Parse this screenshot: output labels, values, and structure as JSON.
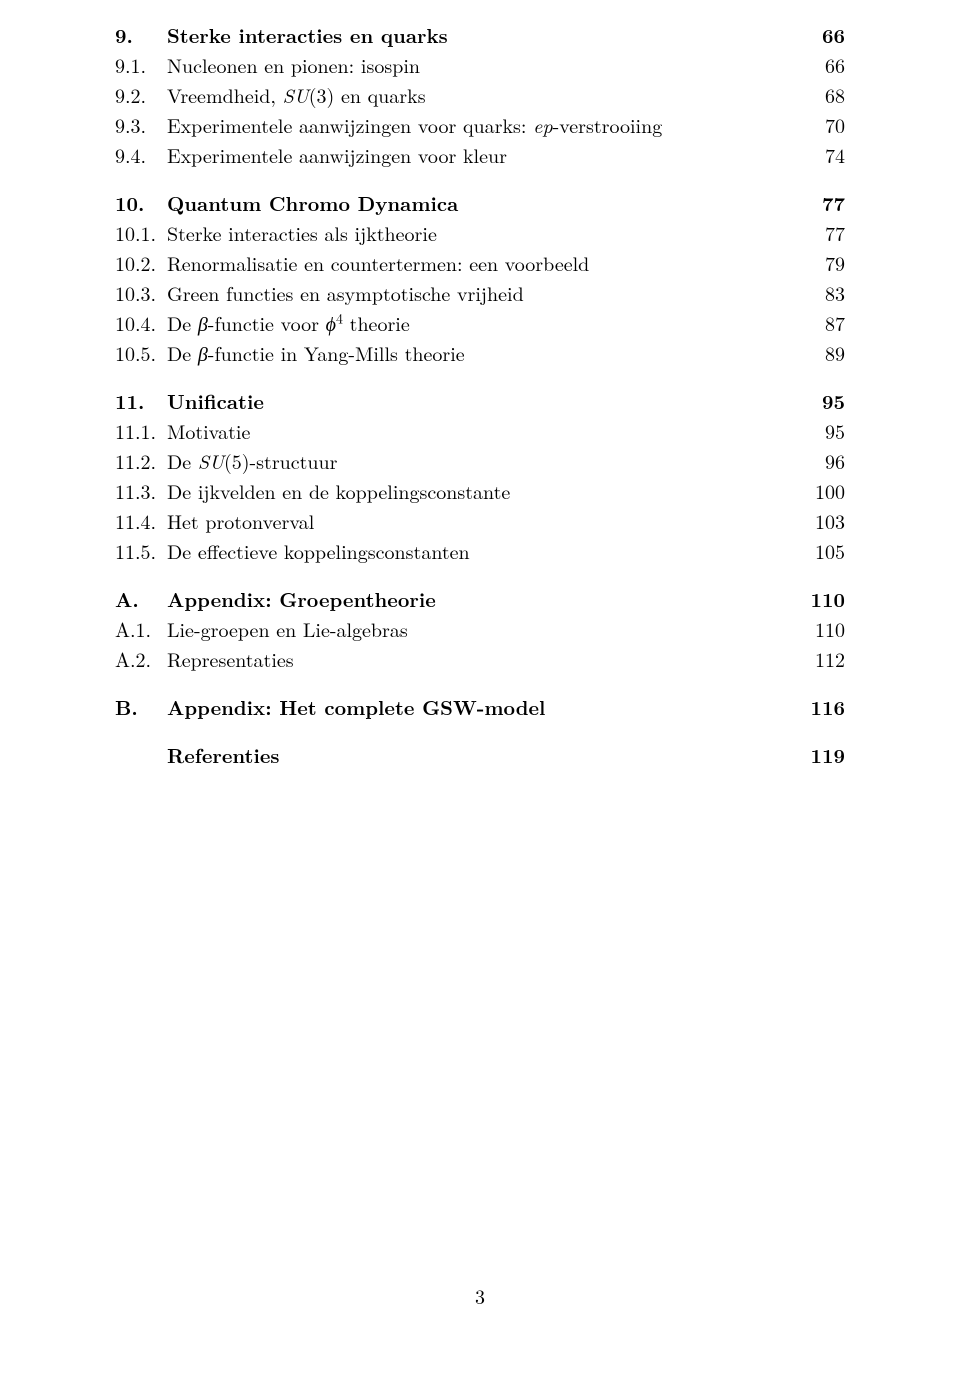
{
  "groups": [
    {
      "heading": {
        "num": "9.",
        "title": "Sterke interacties en quarks",
        "page": "66"
      },
      "items": [
        {
          "num": "9.1.",
          "title": "Nucleonen en pionen: isospin",
          "page": "66"
        },
        {
          "num": "9.2.",
          "title_pre": "Vreemdheid, ",
          "title_mid_i": "SU",
          "title_post": "(3) en quarks",
          "page": "68"
        },
        {
          "num": "9.3.",
          "title_pre": "Experimentele aanwijzingen voor quarks: ",
          "title_mid_i": "ep",
          "title_post": "-verstrooiing",
          "page": "70"
        },
        {
          "num": "9.4.",
          "title": "Experimentele aanwijzingen voor kleur",
          "page": "74"
        }
      ]
    },
    {
      "heading": {
        "num": "10.",
        "title": "Quantum Chromo Dynamica",
        "page": "77"
      },
      "items": [
        {
          "num": "10.1.",
          "title": "Sterke interacties als ijktheorie",
          "page": "77"
        },
        {
          "num": "10.2.",
          "title": "Renormalisatie en countertermen: een voorbeeld",
          "page": "79"
        },
        {
          "num": "10.3.",
          "title": "Green functies en asymptotische vrijheid",
          "page": "83"
        },
        {
          "num": "10.4.",
          "title_pre": "De ",
          "title_mid_i": "β",
          "title_post_pre": "-functie voor ",
          "title_phi4": "ϕ",
          "title_sup": "4",
          "title_after": " theorie",
          "page": "87"
        },
        {
          "num": "10.5.",
          "title_pre": "De ",
          "title_mid_i": "β",
          "title_post": "-functie in Yang-Mills theorie",
          "page": "89"
        }
      ]
    },
    {
      "heading": {
        "num": "11.",
        "title": "Unificatie",
        "page": "95"
      },
      "items": [
        {
          "num": "11.1.",
          "title": "Motivatie",
          "page": "95"
        },
        {
          "num": "11.2.",
          "title_pre": "De ",
          "title_mid_i": "SU",
          "title_post": "(5)-structuur",
          "page": "96"
        },
        {
          "num": "11.3.",
          "title": "De ijkvelden en de koppelingsconstante",
          "page": "100"
        },
        {
          "num": "11.4.",
          "title": "Het protonverval",
          "page": "103"
        },
        {
          "num": "11.5.",
          "title": "De effectieve koppelingsconstanten",
          "page": "105"
        }
      ]
    },
    {
      "heading": {
        "num": "A.",
        "title": "Appendix: Groepentheorie",
        "page": "110"
      },
      "items": [
        {
          "num": "A.1.",
          "title": "Lie-groepen en Lie-algebras",
          "page": "110"
        },
        {
          "num": "A.2.",
          "title": "Representaties",
          "page": "112"
        }
      ]
    },
    {
      "heading": {
        "num": "B.",
        "title": "Appendix: Het complete GSW-model",
        "page": "116"
      },
      "items": []
    },
    {
      "heading": {
        "num": "",
        "title": "Referenties",
        "page": "119"
      },
      "items": []
    }
  ],
  "page_number": "3"
}
